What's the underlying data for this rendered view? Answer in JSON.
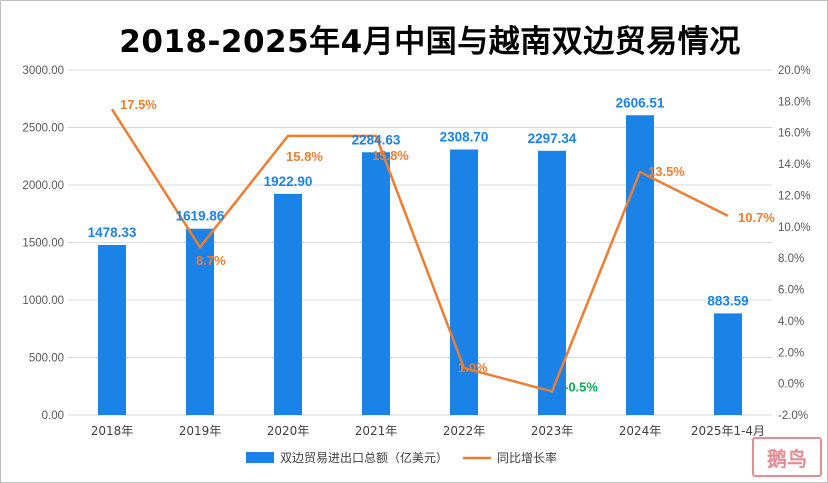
{
  "chart_data": {
    "type": "bar",
    "title": "2018-2025年4月中国与越南双边贸易情况",
    "categories": [
      "2018年",
      "2019年",
      "2020年",
      "2021年",
      "2022年",
      "2023年",
      "2024年",
      "2025年1-4月"
    ],
    "series": [
      {
        "name": "双边贸易进出口总额（亿美元）",
        "type": "bar",
        "axis": "left",
        "color": "#1B82E8",
        "values": [
          1478.33,
          1619.86,
          1922.9,
          2284.63,
          2308.7,
          2297.34,
          2606.51,
          883.59
        ],
        "labels": [
          "1478.33",
          "1619.86",
          "1922.90",
          "2284.63",
          "2308.70",
          "2297.34",
          "2606.51",
          "883.59"
        ]
      },
      {
        "name": "同比增长率",
        "type": "line",
        "axis": "right",
        "color": "#ED7D31",
        "values": [
          17.5,
          8.7,
          15.8,
          15.8,
          1.0,
          -0.5,
          13.5,
          10.7
        ],
        "labels": [
          "17.5%",
          "8.7%",
          "15.8%",
          "15.8%",
          "1.0%",
          "-0.5%",
          "13.5%",
          "10.7%"
        ],
        "label_colors": [
          "#ED7D31",
          "#ED7D31",
          "#ED7D31",
          "#ED7D31",
          "#ED7D31",
          "#00B050",
          "#ED7D31",
          "#ED7D31"
        ]
      }
    ],
    "y_left": {
      "lim": [
        0,
        3000
      ],
      "ticks": [
        0,
        500,
        1000,
        1500,
        2000,
        2500,
        3000
      ],
      "tick_labels": [
        "0.00",
        "500.00",
        "1000.00",
        "1500.00",
        "2000.00",
        "2500.00",
        "3000.00"
      ]
    },
    "y_right": {
      "lim": [
        -2,
        20
      ],
      "ticks": [
        -2,
        0,
        2,
        4,
        6,
        8,
        10,
        12,
        14,
        16,
        18,
        20
      ],
      "tick_labels": [
        "-2.0%",
        "0.0%",
        "2.0%",
        "4.0%",
        "6.0%",
        "8.0%",
        "10.0%",
        "12.0%",
        "14.0%",
        "16.0%",
        "18.0%",
        "20.0%"
      ]
    },
    "grid": true,
    "legend": "bottom"
  },
  "seal": {
    "text": "鹅鸟"
  }
}
